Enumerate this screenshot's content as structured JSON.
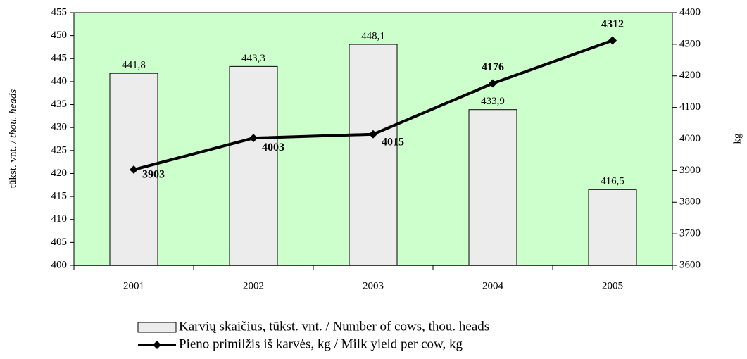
{
  "chart_data": {
    "type": "bar_line",
    "categories": [
      "2001",
      "2002",
      "2003",
      "2004",
      "2005"
    ],
    "series": [
      {
        "name": "Karvių skaičius, tūkst. vnt. / Number of cows, thou. heads",
        "type": "bar",
        "color": "#ececec",
        "values": [
          441.8,
          443.3,
          448.1,
          433.9,
          416.5
        ],
        "value_labels": [
          "441,8",
          "443,3",
          "448,1",
          "433,9",
          "416,5"
        ]
      },
      {
        "name": "Pieno primilžis iš karvės, kg / Milk yield per cow, kg",
        "type": "line",
        "axis": "y2",
        "color": "#000000",
        "values": [
          3903,
          4003,
          4015,
          4176,
          4312
        ]
      }
    ],
    "y_label": [
      "tūkst. vnt. /",
      "thou. heads"
    ],
    "y2_label": "kg",
    "ylim": [
      400,
      455
    ],
    "yticks": [
      400,
      405,
      410,
      415,
      420,
      425,
      430,
      435,
      440,
      445,
      450,
      455
    ],
    "y2lim": [
      3600,
      4400
    ],
    "y2ticks": [
      3600,
      3700,
      3800,
      3900,
      4000,
      4100,
      4200,
      4300,
      4400
    ],
    "plot_background": "#ccffcc",
    "legend": "bottom"
  }
}
